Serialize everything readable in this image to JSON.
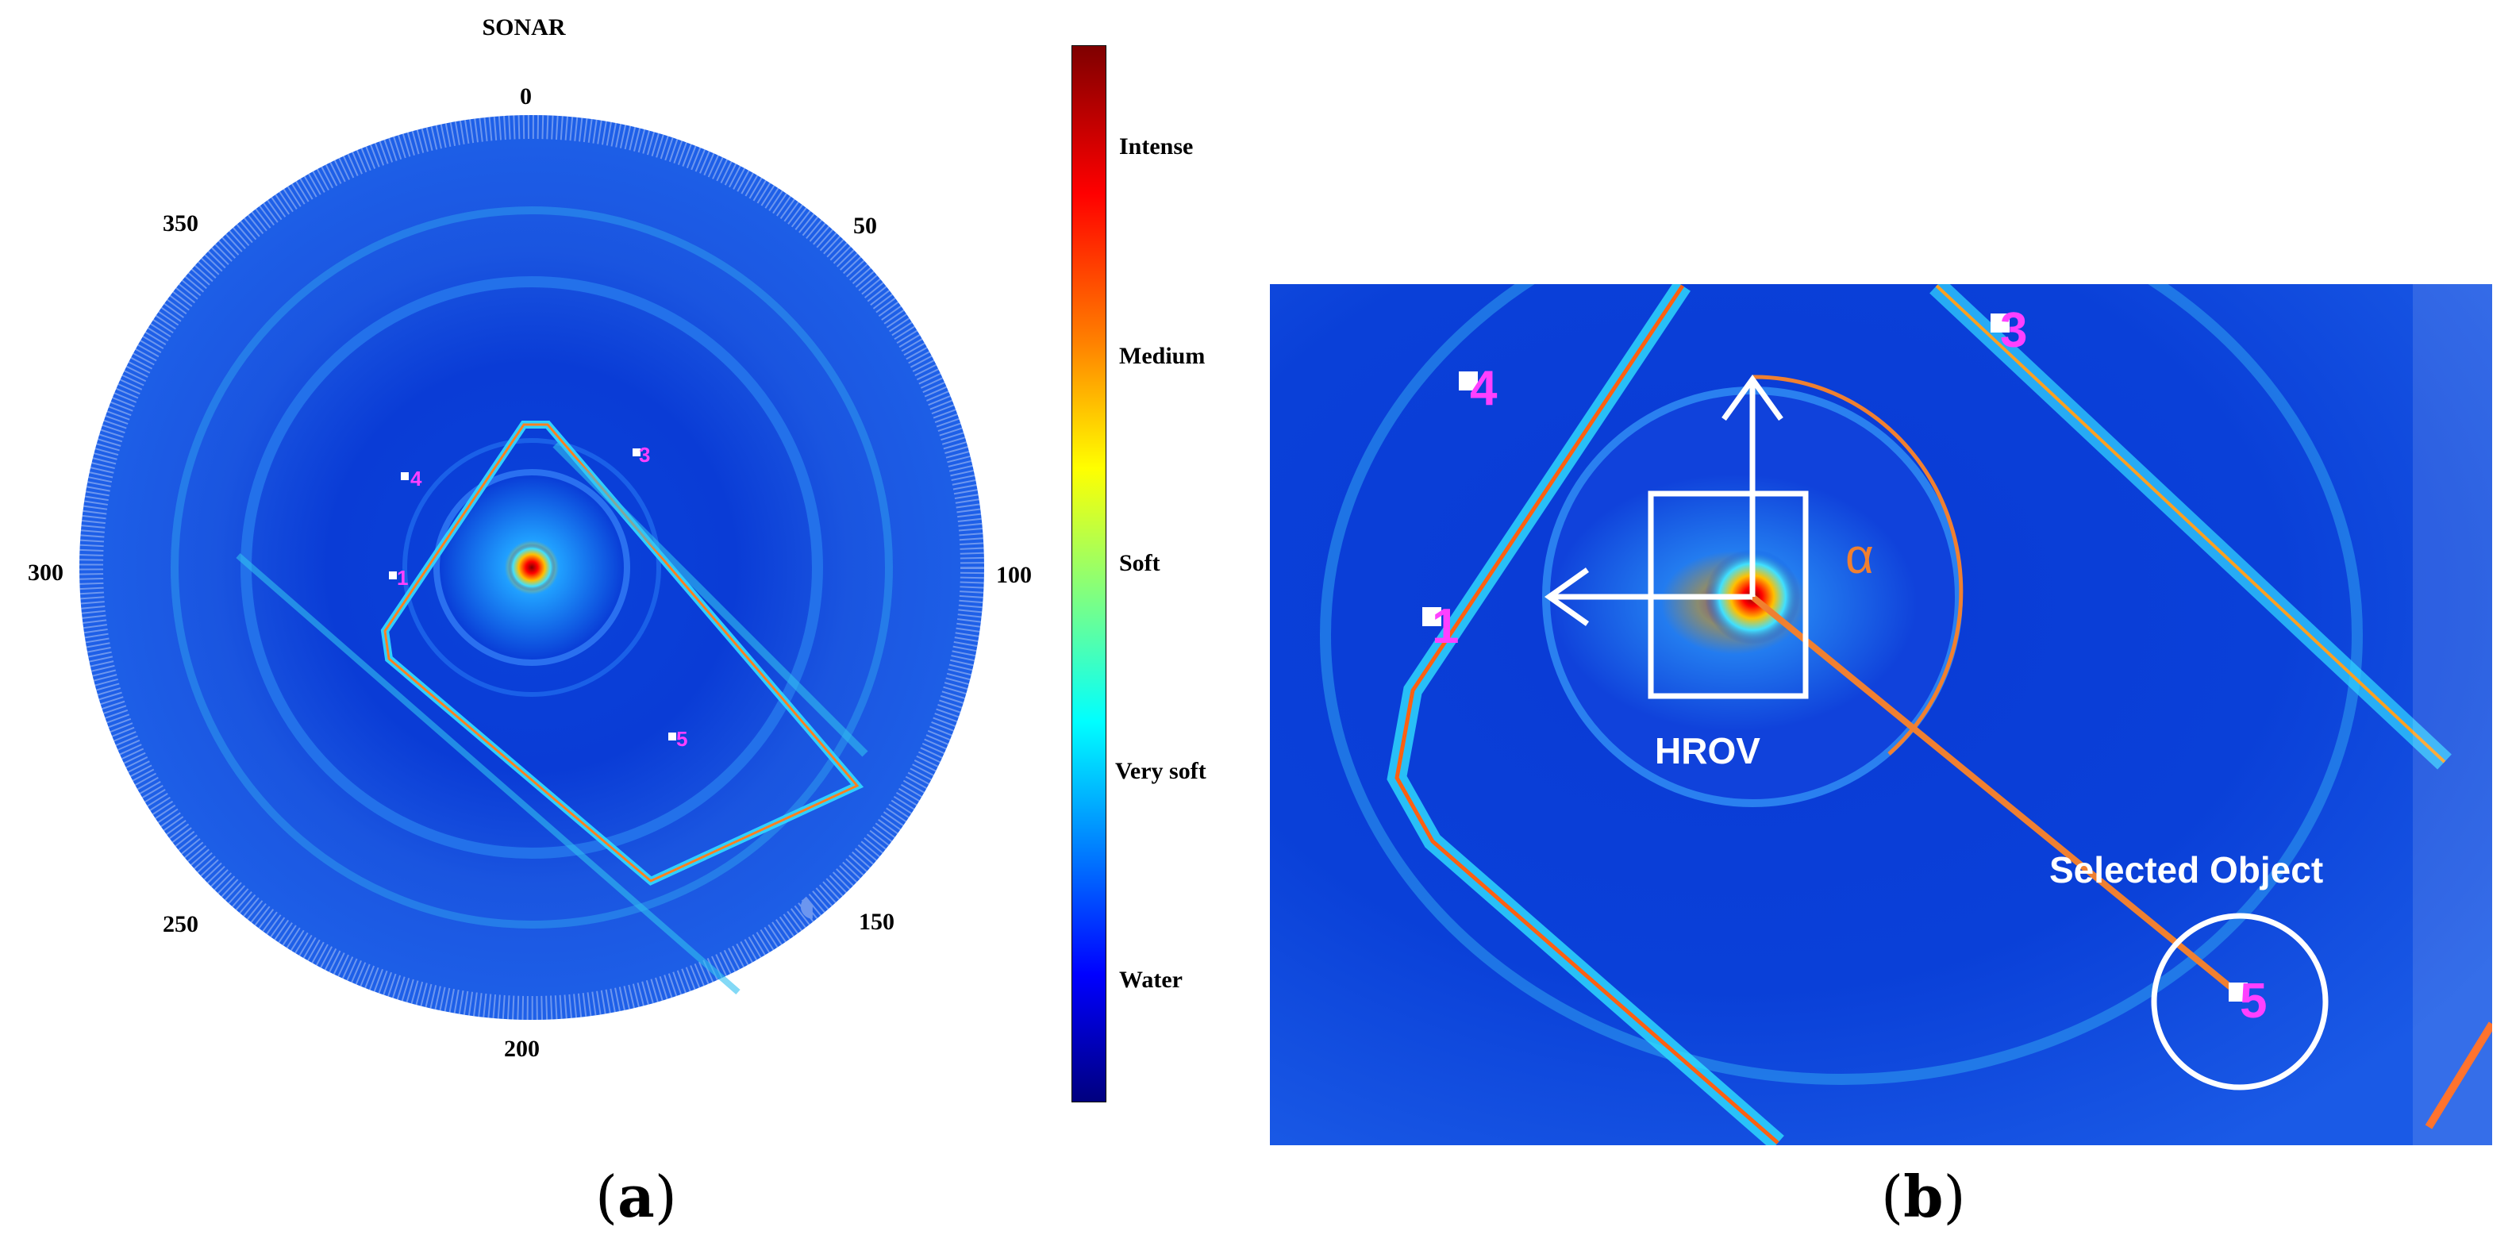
{
  "panel_a": {
    "title": "SONAR",
    "polar_ticks": [
      "0",
      "50",
      "100",
      "150",
      "200",
      "250",
      "300",
      "350"
    ],
    "colorbar_labels": [
      "Intense",
      "Medium",
      "Soft",
      "Very soft",
      "Water"
    ],
    "object_markers": [
      "4",
      "1",
      "3",
      "5"
    ],
    "caption_open": "(",
    "caption_letter": "a",
    "caption_close": ")"
  },
  "panel_b": {
    "object_markers": [
      "4",
      "3",
      "1",
      "5"
    ],
    "angle_symbol": "α",
    "vehicle_label": "HROV",
    "target_label": "Selected Object",
    "caption_open": "(",
    "caption_letter": "b",
    "caption_close": ")"
  },
  "colors": {
    "marker_magenta": "#ff40ff",
    "angle_orange": "#f08030",
    "annotation_white": "#ffffff",
    "sonar_blue": "#0a3cd6"
  }
}
